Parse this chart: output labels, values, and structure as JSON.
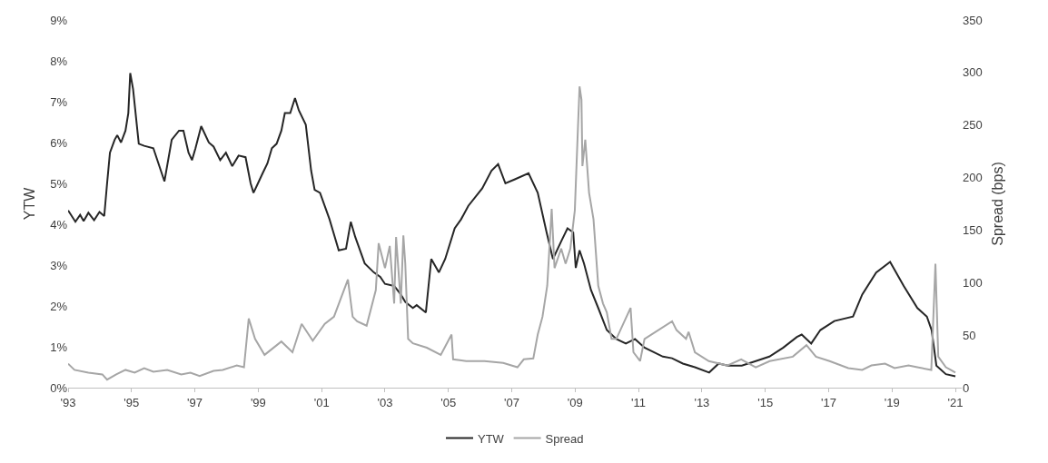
{
  "chart_data": {
    "type": "line",
    "ylabel": "YTW",
    "y2label": "Spread (bps)",
    "xlim": [
      1993,
      2021.2
    ],
    "xticks": [
      {
        "value": 1993,
        "label": "'93"
      },
      {
        "value": 1995,
        "label": "'95"
      },
      {
        "value": 1997,
        "label": "'97"
      },
      {
        "value": 1999,
        "label": "'99"
      },
      {
        "value": 2001,
        "label": "'01"
      },
      {
        "value": 2003,
        "label": "'03"
      },
      {
        "value": 2005,
        "label": "'05"
      },
      {
        "value": 2007,
        "label": "'07"
      },
      {
        "value": 2009,
        "label": "'09"
      },
      {
        "value": 2011,
        "label": "'11"
      },
      {
        "value": 2013,
        "label": "'13"
      },
      {
        "value": 2015,
        "label": "'15"
      },
      {
        "value": 2017,
        "label": "'17"
      },
      {
        "value": 2019,
        "label": "'19"
      },
      {
        "value": 2021,
        "label": "'21"
      }
    ],
    "ylim": [
      0,
      9
    ],
    "yticks": [
      {
        "value": 0,
        "label": "0%"
      },
      {
        "value": 1,
        "label": "1%"
      },
      {
        "value": 2,
        "label": "2%"
      },
      {
        "value": 3,
        "label": "3%"
      },
      {
        "value": 4,
        "label": "4%"
      },
      {
        "value": 5,
        "label": "5%"
      },
      {
        "value": 6,
        "label": "6%"
      },
      {
        "value": 7,
        "label": "7%"
      },
      {
        "value": 8,
        "label": "8%"
      },
      {
        "value": 9,
        "label": "9%"
      }
    ],
    "y2lim": [
      0,
      350
    ],
    "y2ticks": [
      0,
      50,
      100,
      150,
      200,
      250,
      300,
      350
    ],
    "grid": false,
    "legend": "bottom",
    "marker": "none",
    "line_style": "solid",
    "series": [
      {
        "name": "YTW",
        "color": "#262626",
        "x": [
          1993.0,
          1993.23,
          1993.38,
          1993.49,
          1993.64,
          1993.82,
          1993.99,
          1994.14,
          1994.23,
          1994.32,
          1994.47,
          1994.55,
          1994.67,
          1994.81,
          1994.9,
          1994.96,
          1995.05,
          1995.23,
          1995.4,
          1995.69,
          1996.04,
          1996.27,
          1996.5,
          1996.64,
          1996.8,
          1996.91,
          1997.02,
          1997.2,
          1997.44,
          1997.59,
          1997.8,
          1997.98,
          1998.18,
          1998.38,
          1998.6,
          1998.76,
          1998.85,
          1998.96,
          1999.14,
          1999.29,
          1999.43,
          1999.58,
          1999.73,
          1999.84,
          2000.01,
          2000.16,
          2000.28,
          2000.5,
          2000.67,
          2000.78,
          2000.95,
          2001.25,
          2001.54,
          2001.77,
          2001.92,
          2002.06,
          2002.36,
          2002.65,
          2002.85,
          2003.0,
          2003.29,
          2003.5,
          2003.64,
          2003.88,
          2004.0,
          2004.29,
          2004.46,
          2004.7,
          2004.9,
          2005.2,
          2005.4,
          2005.63,
          2006.07,
          2006.36,
          2006.57,
          2006.8,
          2007.1,
          2007.53,
          2007.82,
          2008.1,
          2008.3,
          2008.56,
          2008.76,
          2008.94,
          2009.02,
          2009.14,
          2009.28,
          2009.5,
          2009.73,
          2010.0,
          2010.3,
          2010.6,
          2010.89,
          2011.19,
          2011.48,
          2011.77,
          2012.06,
          2012.4,
          2012.78,
          2013.23,
          2013.53,
          2013.82,
          2014.26,
          2014.7,
          2015.13,
          2015.57,
          2016.0,
          2016.15,
          2016.45,
          2016.74,
          2017.18,
          2017.77,
          2018.06,
          2018.5,
          2018.94,
          2019.37,
          2019.8,
          2020.1,
          2020.25,
          2020.4,
          2020.7,
          2021.0
        ],
        "values": [
          4.34,
          4.06,
          4.23,
          4.08,
          4.28,
          4.1,
          4.3,
          4.2,
          5.0,
          5.75,
          6.07,
          6.18,
          6.0,
          6.29,
          6.72,
          7.7,
          7.31,
          5.97,
          5.92,
          5.86,
          5.05,
          6.07,
          6.29,
          6.29,
          5.75,
          5.57,
          5.86,
          6.4,
          6.0,
          5.9,
          5.57,
          5.75,
          5.42,
          5.68,
          5.64,
          5.0,
          4.77,
          4.95,
          5.25,
          5.49,
          5.86,
          5.97,
          6.29,
          6.72,
          6.72,
          7.09,
          6.79,
          6.44,
          5.31,
          4.84,
          4.77,
          4.12,
          3.36,
          3.4,
          4.06,
          3.69,
          3.04,
          2.82,
          2.71,
          2.54,
          2.49,
          2.28,
          2.1,
          1.95,
          2.02,
          1.84,
          3.15,
          2.82,
          3.15,
          3.9,
          4.12,
          4.45,
          4.88,
          5.31,
          5.47,
          5.0,
          5.1,
          5.25,
          4.77,
          3.8,
          3.15,
          3.58,
          3.9,
          3.8,
          2.93,
          3.36,
          3.04,
          2.39,
          1.95,
          1.41,
          1.19,
          1.08,
          1.19,
          0.98,
          0.87,
          0.76,
          0.72,
          0.59,
          0.5,
          0.37,
          0.59,
          0.54,
          0.54,
          0.65,
          0.76,
          0.98,
          1.24,
          1.3,
          1.08,
          1.41,
          1.63,
          1.74,
          2.28,
          2.82,
          3.08,
          2.49,
          1.95,
          1.74,
          1.41,
          0.54,
          0.33,
          0.28
        ]
      },
      {
        "name": "Spread",
        "color": "#a6a6a6",
        "axis": "y2",
        "x": [
          1993.0,
          1993.2,
          1993.64,
          1994.08,
          1994.23,
          1994.52,
          1994.81,
          1995.1,
          1995.4,
          1995.69,
          1996.13,
          1996.57,
          1996.86,
          1997.15,
          1997.59,
          1997.88,
          1998.32,
          1998.55,
          1998.7,
          1998.9,
          1999.2,
          1999.73,
          2000.08,
          2000.37,
          2000.72,
          2001.1,
          2001.39,
          2001.83,
          2001.98,
          2002.12,
          2002.42,
          2002.71,
          2002.8,
          2003.0,
          2003.15,
          2003.29,
          2003.35,
          2003.5,
          2003.58,
          2003.64,
          2003.73,
          2003.88,
          2004.32,
          2004.76,
          2005.1,
          2005.15,
          2005.56,
          2006.14,
          2006.73,
          2007.18,
          2007.38,
          2007.68,
          2007.82,
          2007.97,
          2008.12,
          2008.26,
          2008.35,
          2008.56,
          2008.7,
          2008.85,
          2008.99,
          2009.08,
          2009.14,
          2009.2,
          2009.23,
          2009.32,
          2009.44,
          2009.58,
          2009.73,
          2009.88,
          2010.0,
          2010.15,
          2010.3,
          2010.75,
          2010.84,
          2011.05,
          2011.19,
          2012.06,
          2012.2,
          2012.5,
          2012.58,
          2012.78,
          2013.22,
          2013.8,
          2014.24,
          2014.7,
          2015.14,
          2015.87,
          2016.3,
          2016.6,
          2017.03,
          2017.62,
          2018.06,
          2018.35,
          2018.78,
          2019.08,
          2019.52,
          2019.8,
          2020.24,
          2020.37,
          2020.46,
          2020.7,
          2020.85,
          2021.0
        ],
        "values": [
          22.8,
          16.9,
          14.3,
          12.6,
          7.6,
          12.6,
          16.9,
          14.3,
          18.6,
          15.2,
          16.9,
          12.6,
          14.3,
          11.0,
          16.0,
          16.9,
          21.1,
          19.4,
          65.8,
          46.4,
          31.2,
          43.9,
          33.7,
          60.7,
          44.7,
          60.7,
          67.5,
          102.9,
          67.5,
          63.2,
          59.0,
          92.8,
          137.5,
          113.8,
          134.9,
          80.1,
          143.4,
          80.1,
          145.0,
          118.0,
          46.4,
          42.2,
          38.0,
          31.2,
          50.6,
          27.0,
          25.3,
          25.3,
          23.6,
          19.4,
          27.0,
          27.8,
          50.6,
          67.5,
          97.0,
          170.3,
          113.8,
          132.4,
          118.0,
          132.4,
          168.7,
          240.3,
          286.7,
          274.0,
          210.9,
          236.0,
          185.5,
          160.2,
          97.0,
          80.1,
          71.7,
          46.4,
          46.4,
          75.9,
          33.7,
          25.3,
          46.4,
          63.2,
          54.8,
          46.4,
          53.1,
          33.7,
          25.3,
          21.1,
          27.0,
          19.4,
          25.3,
          29.5,
          40.5,
          29.5,
          25.3,
          18.6,
          16.9,
          21.1,
          22.8,
          18.6,
          21.1,
          19.4,
          16.9,
          118.0,
          29.5,
          19.4,
          16.9,
          14.3
        ]
      }
    ]
  }
}
